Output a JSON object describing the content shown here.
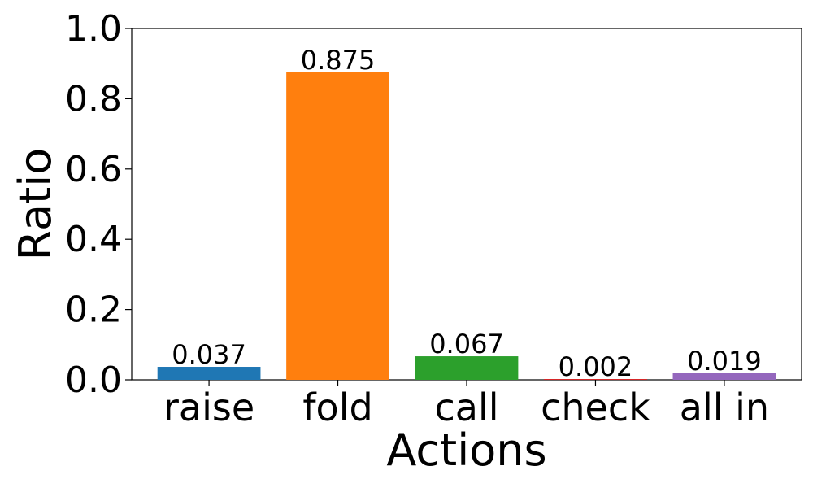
{
  "chart_data": {
    "type": "bar",
    "categories": [
      "raise",
      "fold",
      "call",
      "check",
      "all in"
    ],
    "values": [
      0.037,
      0.875,
      0.067,
      0.002,
      0.019
    ],
    "data_labels": [
      "0.037",
      "0.875",
      "0.067",
      "0.002",
      "0.019"
    ],
    "colors": [
      "#1f77b4",
      "#ff7f0e",
      "#2ca02c",
      "#d62728",
      "#9467bd"
    ],
    "title": "",
    "xlabel": "Actions",
    "ylabel": "Ratio",
    "ylim": [
      0,
      1.0
    ],
    "yticks": [
      0.0,
      0.2,
      0.4,
      0.6,
      0.8,
      1.0
    ],
    "ytick_labels": [
      "0.0",
      "0.2",
      "0.4",
      "0.6",
      "0.8",
      "1.0"
    ],
    "grid": false,
    "legend": "none"
  }
}
